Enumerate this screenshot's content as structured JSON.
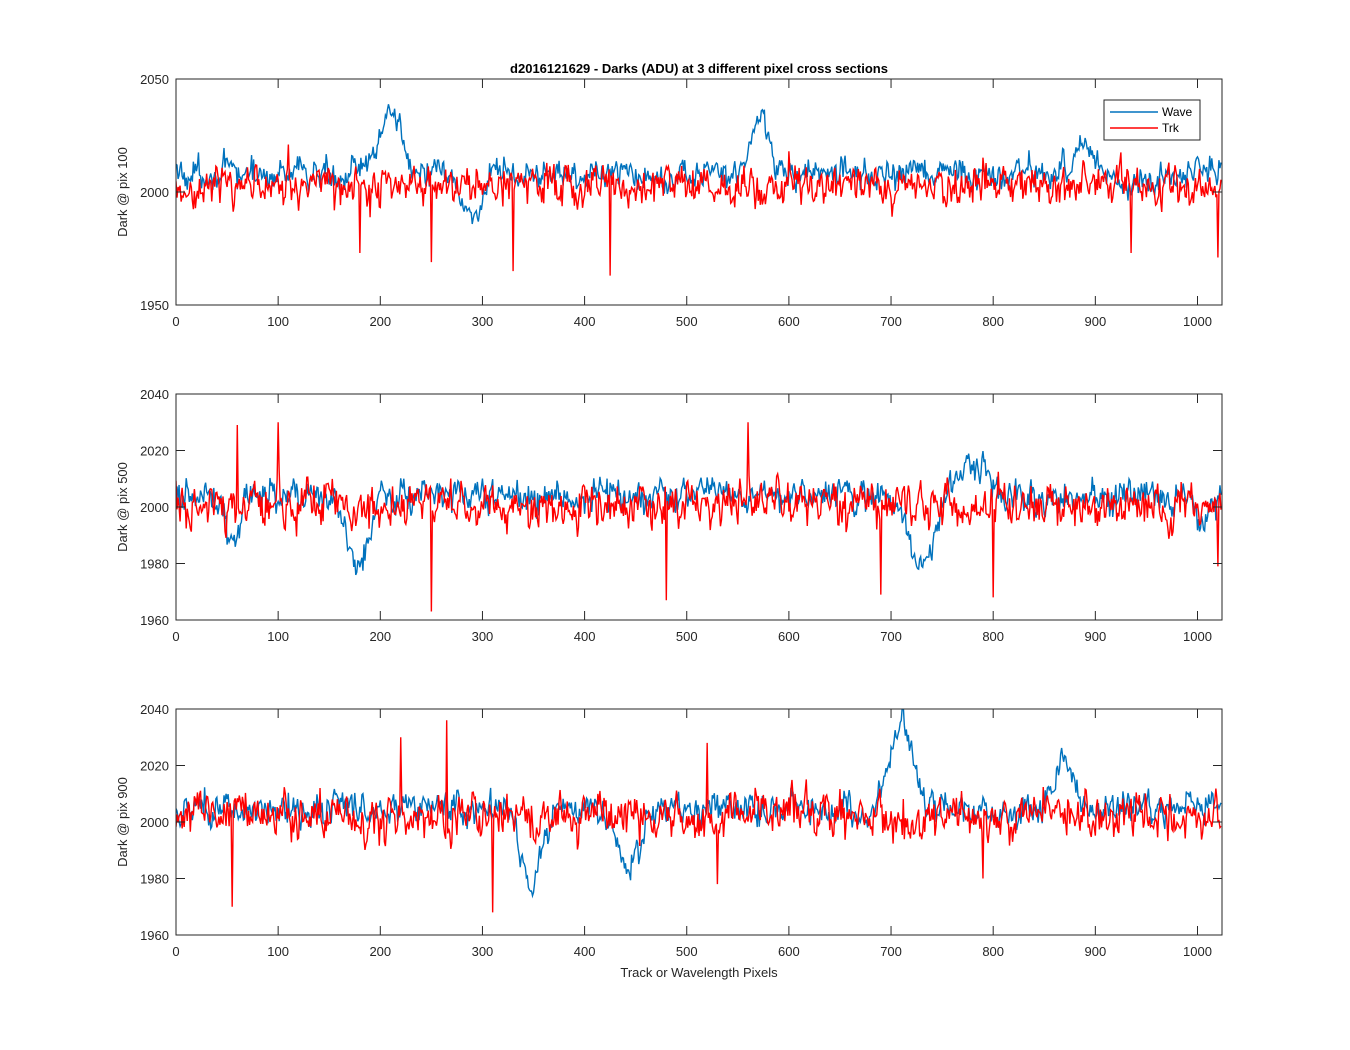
{
  "figure": {
    "title": "d2016121629 - Darks (ADU) at 3 different pixel cross sections",
    "xlabel": "Track or Wavelength Pixels"
  },
  "colors": {
    "wave": "#0072BD",
    "trk": "#FF0000",
    "axes": "#262626",
    "background": "#FFFFFF"
  },
  "legend": {
    "position": "top-right of first panel",
    "entries": [
      "Wave",
      "Trk"
    ]
  },
  "chart_data": [
    {
      "type": "line",
      "ylabel": "Dark @ pix 100",
      "xlim": [
        0,
        1024
      ],
      "ylim": [
        1950,
        2050
      ],
      "xticks": [
        0,
        100,
        200,
        300,
        400,
        500,
        600,
        700,
        800,
        900,
        1000
      ],
      "yticks": [
        1950,
        2000,
        2050
      ],
      "grid": false,
      "series": [
        {
          "name": "Wave",
          "baseline": 2008,
          "noise": 7,
          "features": [
            [
              200,
              220,
              28
            ],
            [
              280,
              300,
              -18
            ],
            [
              565,
              580,
              25
            ],
            [
              880,
              900,
              12
            ],
            [
              920,
              960,
              -6
            ]
          ]
        },
        {
          "name": "Trk",
          "baseline": 2003,
          "noise": 9,
          "spikes": [
            [
              180,
              -30
            ],
            [
              250,
              -34
            ],
            [
              330,
              -38
            ],
            [
              425,
              -40
            ],
            [
              935,
              -30
            ],
            [
              1020,
              -32
            ],
            [
              110,
              18
            ],
            [
              600,
              15
            ]
          ]
        }
      ]
    },
    {
      "type": "line",
      "ylabel": "Dark @ pix 500",
      "xlim": [
        0,
        1024
      ],
      "ylim": [
        1960,
        2040
      ],
      "xticks": [
        0,
        100,
        200,
        300,
        400,
        500,
        600,
        700,
        800,
        900,
        1000
      ],
      "yticks": [
        1960,
        1980,
        2000,
        2020,
        2040
      ],
      "grid": false,
      "series": [
        {
          "name": "Wave",
          "baseline": 2004,
          "noise": 6,
          "features": [
            [
              50,
              60,
              -14
            ],
            [
              170,
              185,
              -28
            ],
            [
              720,
              740,
              -26
            ],
            [
              760,
              800,
              12
            ],
            [
              1000,
              1010,
              -10
            ]
          ]
        },
        {
          "name": "Trk",
          "baseline": 2001,
          "noise": 8,
          "spikes": [
            [
              60,
              28
            ],
            [
              100,
              29
            ],
            [
              250,
              -38
            ],
            [
              480,
              -34
            ],
            [
              560,
              29
            ],
            [
              690,
              -32
            ],
            [
              800,
              -33
            ],
            [
              1020,
              -22
            ]
          ]
        }
      ]
    },
    {
      "type": "line",
      "ylabel": "Dark @ pix 900",
      "xlim": [
        0,
        1024
      ],
      "ylim": [
        1960,
        2040
      ],
      "xticks": [
        0,
        100,
        200,
        300,
        400,
        500,
        600,
        700,
        800,
        900,
        1000
      ],
      "yticks": [
        1960,
        1980,
        2000,
        2020,
        2040
      ],
      "grid": false,
      "series": [
        {
          "name": "Wave",
          "baseline": 2005,
          "noise": 6,
          "features": [
            [
              340,
              355,
              -30
            ],
            [
              430,
              455,
              -20
            ],
            [
              700,
              720,
              32
            ],
            [
              860,
              880,
              14
            ]
          ]
        },
        {
          "name": "Trk",
          "baseline": 2002,
          "noise": 8,
          "spikes": [
            [
              55,
              -32
            ],
            [
              220,
              28
            ],
            [
              265,
              34
            ],
            [
              310,
              -34
            ],
            [
              520,
              26
            ],
            [
              530,
              -24
            ],
            [
              790,
              -22
            ]
          ]
        }
      ]
    }
  ]
}
